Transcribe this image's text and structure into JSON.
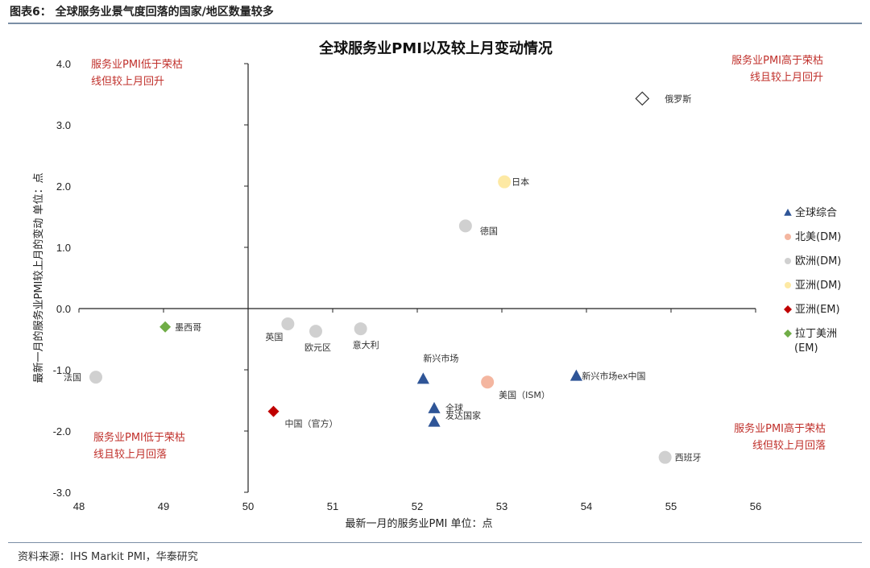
{
  "header": {
    "figure_title": "图表6：  全球服务业景气度回落的国家/地区数量较多",
    "source": "资料来源：IHS Markit PMI，华泰研究"
  },
  "chart_data": {
    "type": "scatter",
    "title": "全球服务业PMI以及较上月变动情况",
    "xlabel": "最新一月的服务业PMI    单位：点",
    "ylabel": "最新一月的服务业PMI较上月的变动    单位：点",
    "xlim": [
      48,
      56
    ],
    "ylim": [
      -3.0,
      4.0
    ],
    "x_ticks": [
      "48",
      "49",
      "50",
      "51",
      "52",
      "53",
      "54",
      "55",
      "56"
    ],
    "y_ticks": [
      "4.0",
      "3.0",
      "2.0",
      "1.0",
      "0.0",
      "-1.0",
      "-2.0",
      "-3.0"
    ],
    "crosshair": {
      "x": 50,
      "y": 0
    },
    "quadrant_labels": [
      {
        "position": "top-left",
        "lines": [
          "服务业PMI低于荣枯",
          "线但较上月回升"
        ]
      },
      {
        "position": "top-right",
        "lines": [
          "服务业PMI高于荣枯",
          "线且较上月回升"
        ]
      },
      {
        "position": "bottom-left",
        "lines": [
          "服务业PMI低于荣枯",
          "线且较上月回落"
        ]
      },
      {
        "position": "bottom-right",
        "lines": [
          "服务业PMI高于荣枯",
          "线但较上月回落"
        ]
      }
    ],
    "series": [
      {
        "name": "全球综合",
        "marker": "triangle",
        "color": "#2f5597",
        "points": [
          {
            "label": "新兴市场",
            "x": 52.07,
            "y": -1.15
          },
          {
            "label": "全球",
            "x": 52.2,
            "y": -1.63
          },
          {
            "label": "发达国家",
            "x": 52.2,
            "y": -1.85
          },
          {
            "label": "新兴市场ex中国",
            "x": 53.88,
            "y": -1.1
          }
        ]
      },
      {
        "name": "北美(DM)",
        "marker": "circle",
        "color": "#f4b6a0",
        "points": [
          {
            "label": "美国（ISM）",
            "x": 52.83,
            "y": -1.2
          }
        ]
      },
      {
        "name": "欧洲(DM)",
        "marker": "circle",
        "color": "#d0d0d0",
        "points": [
          {
            "label": "德国",
            "x": 52.57,
            "y": 1.35
          },
          {
            "label": "英国",
            "x": 50.47,
            "y": -0.25
          },
          {
            "label": "欧元区",
            "x": 50.8,
            "y": -0.37
          },
          {
            "label": "意大利",
            "x": 51.33,
            "y": -0.33
          },
          {
            "label": "法国",
            "x": 48.2,
            "y": -1.12
          },
          {
            "label": "西班牙",
            "x": 54.93,
            "y": -2.43
          },
          {
            "label": "俄罗斯",
            "x": 54.66,
            "y": 3.43
          }
        ]
      },
      {
        "name": "亚洲(DM)",
        "marker": "circle",
        "color": "#fde9a4",
        "points": [
          {
            "label": "日本",
            "x": 53.03,
            "y": 2.07
          }
        ]
      },
      {
        "name": "亚洲(EM)",
        "marker": "diamond",
        "color": "#c00000",
        "points": [
          {
            "label": "中国（官方）",
            "x": 50.3,
            "y": -1.68
          }
        ]
      },
      {
        "name": "拉丁美洲\n(EM)",
        "marker": "diamond",
        "color": "#70ad47",
        "points": [
          {
            "label": "墨西哥",
            "x": 49.02,
            "y": -0.3
          }
        ]
      }
    ],
    "legend_position": "right"
  }
}
